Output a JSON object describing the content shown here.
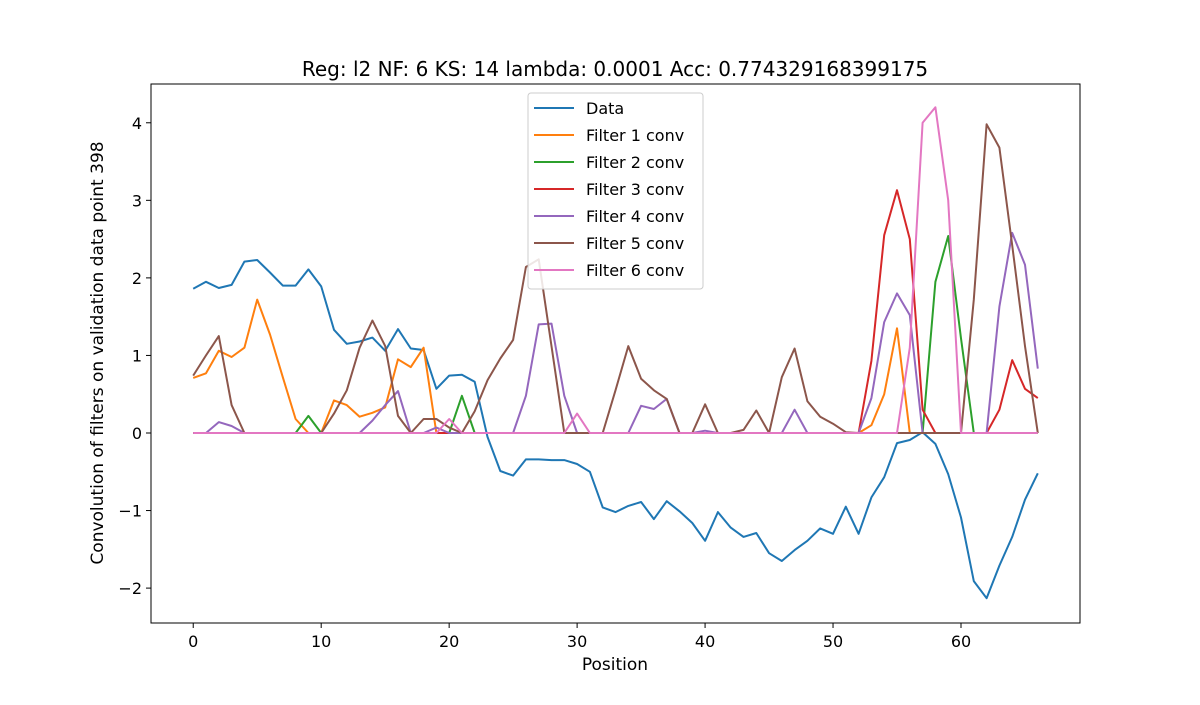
{
  "chart_data": {
    "type": "line",
    "title": "Reg: l2  NF: 6  KS: 14  lambda: 0.0001 Acc: 0.774329168399175",
    "xlabel": "Position",
    "ylabel": "Convolution of filters on validation data point 398",
    "xlim": [
      -3.3,
      69.3
    ],
    "ylim": [
      -2.45,
      4.5
    ],
    "x_ticks": [
      0,
      10,
      20,
      30,
      40,
      50,
      60
    ],
    "y_ticks": [
      -2,
      -1,
      0,
      1,
      2,
      3,
      4
    ],
    "x_tick_labels": [
      "0",
      "10",
      "20",
      "30",
      "40",
      "50",
      "60"
    ],
    "y_tick_labels": [
      "−2",
      "−1",
      "0",
      "1",
      "2",
      "3",
      "4"
    ],
    "grid": false,
    "legend_position": "top-center",
    "x": [
      0,
      1,
      2,
      3,
      4,
      5,
      6,
      7,
      8,
      9,
      10,
      11,
      12,
      13,
      14,
      15,
      16,
      17,
      18,
      19,
      20,
      21,
      22,
      23,
      24,
      25,
      26,
      27,
      28,
      29,
      30,
      31,
      32,
      33,
      34,
      35,
      36,
      37,
      38,
      39,
      40,
      41,
      42,
      43,
      44,
      45,
      46,
      47,
      48,
      49,
      50,
      51,
      52,
      53,
      54,
      55,
      56,
      57,
      58,
      59,
      60,
      61,
      62,
      63,
      64,
      65,
      66
    ],
    "series": [
      {
        "name": "Data",
        "color": "#1f77b4",
        "values": [
          1.86,
          1.95,
          1.87,
          1.91,
          2.21,
          2.23,
          2.07,
          1.9,
          1.9,
          2.11,
          1.89,
          1.33,
          1.15,
          1.18,
          1.23,
          1.06,
          1.34,
          1.09,
          1.07,
          0.57,
          0.74,
          0.75,
          0.66,
          -0.05,
          -0.49,
          -0.55,
          -0.34,
          -0.34,
          -0.35,
          -0.35,
          -0.4,
          -0.5,
          -0.96,
          -1.02,
          -0.94,
          -0.89,
          -1.11,
          -0.88,
          -1.01,
          -1.16,
          -1.39,
          -1.02,
          -1.22,
          -1.34,
          -1.29,
          -1.55,
          -1.65,
          -1.51,
          -1.39,
          -1.23,
          -1.3,
          -0.95,
          -1.3,
          -0.83,
          -0.57,
          -0.13,
          -0.09,
          0.01,
          -0.14,
          -0.53,
          -1.09,
          -1.91,
          -2.13,
          -1.71,
          -1.34,
          -0.86,
          -0.52
        ]
      },
      {
        "name": "Filter 1 conv",
        "color": "#ff7f0e",
        "values": [
          0.71,
          0.77,
          1.06,
          0.98,
          1.1,
          1.72,
          1.27,
          0.72,
          0.18,
          0.0,
          0.0,
          0.42,
          0.36,
          0.21,
          0.26,
          0.33,
          0.95,
          0.85,
          1.1,
          0.0,
          0.0,
          0.0,
          0.0,
          0.0,
          0.0,
          0.0,
          0.0,
          0.0,
          0.0,
          0.0,
          0.0,
          0.0,
          0.0,
          0.0,
          0.0,
          0.0,
          0.0,
          0.0,
          0.0,
          0.0,
          0.0,
          0.0,
          0.0,
          0.0,
          0.0,
          0.0,
          0.0,
          0.0,
          0.0,
          0.0,
          0.0,
          0.0,
          0.0,
          0.1,
          0.5,
          1.35,
          0.0,
          0.0,
          0.0,
          0.0,
          0.0,
          0.0,
          0.0,
          0.0,
          0.0,
          0.0,
          0.0
        ]
      },
      {
        "name": "Filter 2 conv",
        "color": "#2ca02c",
        "values": [
          0.0,
          0.0,
          0.0,
          0.0,
          0.0,
          0.0,
          0.0,
          0.0,
          0.0,
          0.22,
          0.0,
          0.0,
          0.0,
          0.0,
          0.0,
          0.0,
          0.0,
          0.0,
          0.0,
          0.0,
          0.0,
          0.48,
          0.0,
          0.0,
          0.0,
          0.0,
          0.0,
          0.0,
          0.0,
          0.0,
          0.0,
          0.0,
          0.0,
          0.0,
          0.0,
          0.0,
          0.0,
          0.0,
          0.0,
          0.0,
          0.0,
          0.0,
          0.0,
          0.0,
          0.0,
          0.0,
          0.0,
          0.0,
          0.0,
          0.0,
          0.0,
          0.0,
          0.0,
          0.0,
          0.0,
          0.0,
          0.0,
          0.0,
          1.95,
          2.54,
          1.22,
          0.0,
          0.0,
          0.0,
          0.0,
          0.0,
          0.0
        ]
      },
      {
        "name": "Filter 3 conv",
        "color": "#d62728",
        "values": [
          0.0,
          0.0,
          0.0,
          0.0,
          0.0,
          0.0,
          0.0,
          0.0,
          0.0,
          0.0,
          0.0,
          0.0,
          0.0,
          0.0,
          0.0,
          0.0,
          0.0,
          0.0,
          0.0,
          0.0,
          0.0,
          0.0,
          0.0,
          0.0,
          0.0,
          0.0,
          0.0,
          0.0,
          0.0,
          0.0,
          0.0,
          0.0,
          0.0,
          0.0,
          0.0,
          0.0,
          0.0,
          0.0,
          0.0,
          0.0,
          0.0,
          0.0,
          0.0,
          0.0,
          0.0,
          0.0,
          0.0,
          0.0,
          0.0,
          0.0,
          0.0,
          0.0,
          0.0,
          0.93,
          2.55,
          3.13,
          2.5,
          0.3,
          0.0,
          0.0,
          0.0,
          0.0,
          0.0,
          0.3,
          0.94,
          0.57,
          0.45
        ]
      },
      {
        "name": "Filter 4 conv",
        "color": "#9467bd",
        "values": [
          0.0,
          0.0,
          0.14,
          0.09,
          0.0,
          0.0,
          0.0,
          0.0,
          0.0,
          0.0,
          0.0,
          0.0,
          0.0,
          0.0,
          0.16,
          0.36,
          0.54,
          0.0,
          0.0,
          0.07,
          0.0,
          0.0,
          0.0,
          0.0,
          0.0,
          0.0,
          0.48,
          1.4,
          1.41,
          0.48,
          0.0,
          0.0,
          0.0,
          0.0,
          0.0,
          0.35,
          0.31,
          0.44,
          0.0,
          0.0,
          0.03,
          0.0,
          0.0,
          0.0,
          0.0,
          0.0,
          0.0,
          0.3,
          0.0,
          0.0,
          0.0,
          0.0,
          0.0,
          0.45,
          1.43,
          1.8,
          1.52,
          0.0,
          0.0,
          0.0,
          0.0,
          0.0,
          0.0,
          1.63,
          2.58,
          2.17,
          0.83
        ]
      },
      {
        "name": "Filter 5 conv",
        "color": "#8c564b",
        "values": [
          0.74,
          1.0,
          1.25,
          0.36,
          0.0,
          0.0,
          0.0,
          0.0,
          0.0,
          0.0,
          0.0,
          0.25,
          0.55,
          1.1,
          1.45,
          1.12,
          0.22,
          0.0,
          0.18,
          0.18,
          0.07,
          0.0,
          0.28,
          0.68,
          0.96,
          1.2,
          2.14,
          2.24,
          1.12,
          0.0,
          0.0,
          0.0,
          0.0,
          0.55,
          1.12,
          0.7,
          0.55,
          0.44,
          0.0,
          0.0,
          0.37,
          0.0,
          0.0,
          0.04,
          0.29,
          0.0,
          0.72,
          1.09,
          0.41,
          0.21,
          0.12,
          0.01,
          0.0,
          0.0,
          0.0,
          0.0,
          0.0,
          0.0,
          0.0,
          0.0,
          0.0,
          1.72,
          3.98,
          3.68,
          2.42,
          1.12,
          0.0
        ]
      },
      {
        "name": "Filter 6 conv",
        "color": "#e377c2",
        "values": [
          0.0,
          0.0,
          0.0,
          0.0,
          0.0,
          0.0,
          0.0,
          0.0,
          0.0,
          0.0,
          0.0,
          0.0,
          0.0,
          0.0,
          0.0,
          0.0,
          0.0,
          0.0,
          0.0,
          0.0,
          0.18,
          0.0,
          0.0,
          0.0,
          0.0,
          0.0,
          0.0,
          0.0,
          0.0,
          0.0,
          0.25,
          0.0,
          0.0,
          0.0,
          0.0,
          0.0,
          0.0,
          0.0,
          0.0,
          0.0,
          0.0,
          0.0,
          0.0,
          0.0,
          0.0,
          0.0,
          0.0,
          0.0,
          0.0,
          0.0,
          0.0,
          0.0,
          0.0,
          0.0,
          0.0,
          0.0,
          1.1,
          4.0,
          4.2,
          3.0,
          0.0,
          0.0,
          0.0,
          0.0,
          0.0,
          0.0,
          0.0
        ]
      }
    ]
  }
}
